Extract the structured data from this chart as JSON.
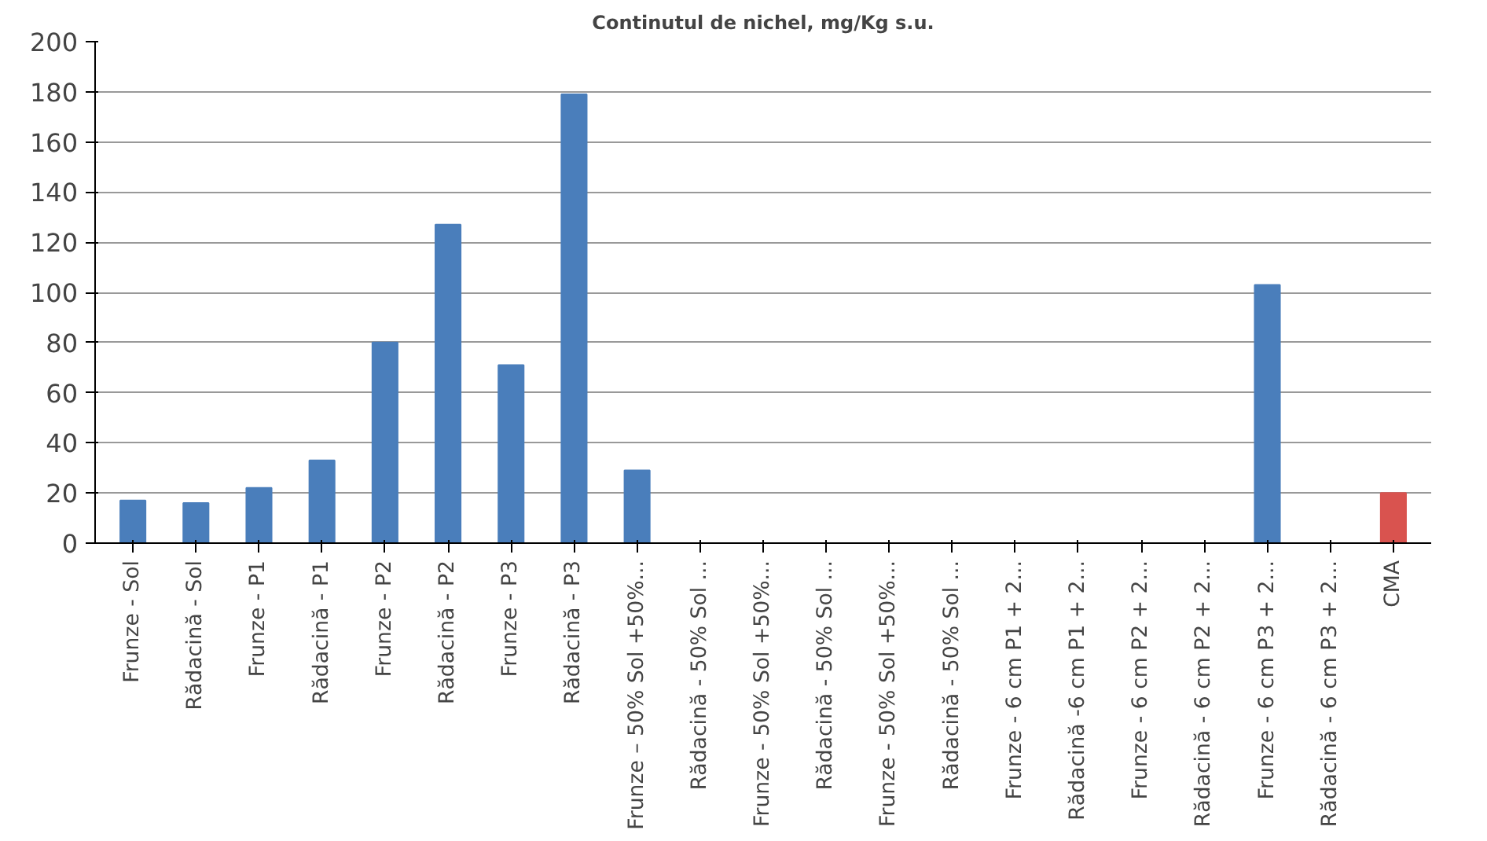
{
  "chart_data": {
    "type": "bar",
    "title": "Continutul de nichel, mg/Kg s.u.",
    "categories": [
      "Frunze - Sol",
      "Rădacină - Sol",
      "Frunze - P1",
      "Rădacină - P1",
      "Frunze - P2",
      "Rădacină - P2",
      "Frunze - P3",
      "Rădacină - P3",
      "Frunze – 50% Sol +50%...",
      "Rădacină - 50% Sol ...",
      "Frunze - 50% Sol +50%...",
      "Rădacină - 50% Sol ...",
      "Frunze - 50% Sol +50%...",
      "Rădacină - 50% Sol ...",
      "Frunze - 6 cm P1 + 2...",
      "Rădacină -6 cm P1 + 2...",
      "Frunze - 6 cm P2 + 2...",
      "Rădacină - 6 cm P2 + 2...",
      "Frunze - 6 cm P3 + 2...",
      "Rădacină - 6 cm P3 + 2...",
      "CMA"
    ],
    "values": [
      17,
      16,
      22,
      33,
      80,
      127,
      71,
      179,
      29,
      0,
      0,
      0,
      0,
      0,
      0,
      0,
      0,
      0,
      103,
      0,
      20
    ],
    "colors": [
      "#4a7ebb",
      "#4a7ebb",
      "#4a7ebb",
      "#4a7ebb",
      "#4a7ebb",
      "#4a7ebb",
      "#4a7ebb",
      "#4a7ebb",
      "#4a7ebb",
      "#4a7ebb",
      "#4a7ebb",
      "#4a7ebb",
      "#4a7ebb",
      "#4a7ebb",
      "#4a7ebb",
      "#4a7ebb",
      "#4a7ebb",
      "#4a7ebb",
      "#4a7ebb",
      "#4a7ebb",
      "#d9534f"
    ],
    "ylim": [
      0,
      200
    ],
    "yticks": [
      0,
      20,
      40,
      60,
      80,
      100,
      120,
      140,
      160,
      180,
      200
    ],
    "grid": "y"
  }
}
